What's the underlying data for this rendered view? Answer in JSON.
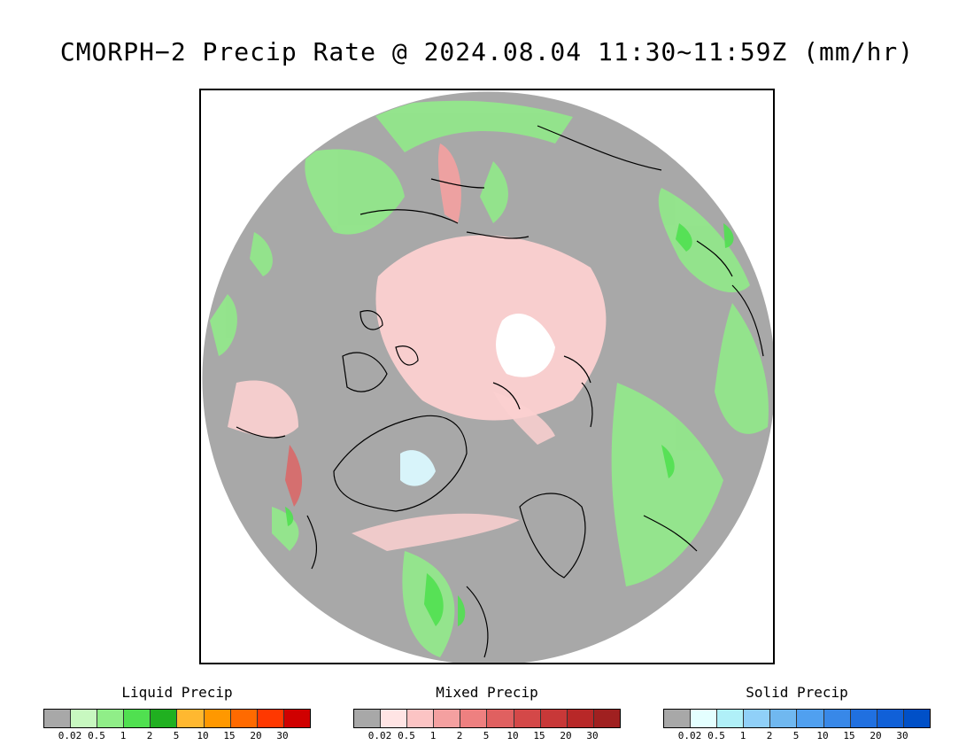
{
  "title": "CMORPH−2 Precip Rate @ 2024.08.04 11:30~11:59Z (mm/hr)",
  "map": {
    "projection": "north-polar-stereographic",
    "background_no_precip": "#a8a8a8",
    "coastline_color": "#000000"
  },
  "legends": [
    {
      "title": "Liquid Precip",
      "colors": [
        "#a8a8a8",
        "#c8f8c0",
        "#90ee88",
        "#50e050",
        "#20b020",
        "#ffb830",
        "#ff9800",
        "#ff6a00",
        "#ff3800",
        "#d00000"
      ],
      "ticks": [
        "0.02",
        "0.5",
        "1",
        "2",
        "5",
        "10",
        "15",
        "20",
        "30"
      ]
    },
    {
      "title": "Mixed Precip",
      "colors": [
        "#a8a8a8",
        "#ffe4e4",
        "#fcc4c4",
        "#f4a0a0",
        "#ee8080",
        "#e06060",
        "#d44848",
        "#c83838",
        "#b82828",
        "#a02020"
      ],
      "ticks": [
        "0.02",
        "0.5",
        "1",
        "2",
        "5",
        "10",
        "15",
        "20",
        "30"
      ]
    },
    {
      "title": "Solid Precip",
      "colors": [
        "#a8a8a8",
        "#e4ffff",
        "#b0f0f8",
        "#90d0f8",
        "#70b8f0",
        "#50a0f0",
        "#3888e8",
        "#2070e0",
        "#1060d8",
        "#0050c8"
      ],
      "ticks": [
        "0.02",
        "0.5",
        "1",
        "2",
        "5",
        "10",
        "15",
        "20",
        "30"
      ]
    }
  ]
}
